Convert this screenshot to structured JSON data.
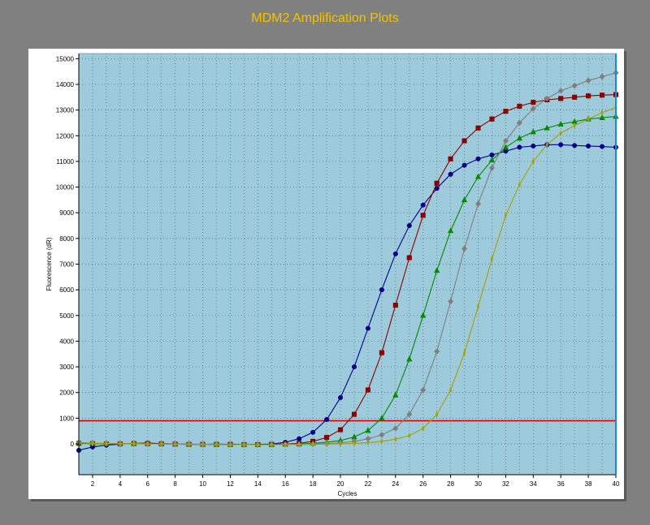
{
  "page": {
    "title": "MDM2 Amplification Plots"
  },
  "chart_data": {
    "type": "line",
    "title": "MDM2 Amplification Plots",
    "xlabel": "Cycles",
    "ylabel": "Fluorescence (dR)",
    "xlim": [
      1,
      40
    ],
    "ylim": [
      -1200,
      15200
    ],
    "x_ticks": [
      2,
      4,
      6,
      8,
      10,
      12,
      14,
      16,
      18,
      20,
      22,
      24,
      26,
      28,
      30,
      32,
      34,
      36,
      38,
      40
    ],
    "y_ticks": [
      0,
      1000,
      2000,
      3000,
      4000,
      5000,
      6000,
      7000,
      8000,
      9000,
      10000,
      11000,
      12000,
      13000,
      14000,
      15000
    ],
    "grid": true,
    "plot_background": "#9ecbdc",
    "threshold": {
      "value": 900,
      "color": "#dd0000"
    },
    "x": [
      1,
      2,
      3,
      4,
      5,
      6,
      7,
      8,
      9,
      10,
      11,
      12,
      13,
      14,
      15,
      16,
      17,
      18,
      19,
      20,
      21,
      22,
      23,
      24,
      25,
      26,
      27,
      28,
      29,
      30,
      31,
      32,
      33,
      34,
      35,
      36,
      37,
      38,
      39,
      40
    ],
    "series": [
      {
        "color": "#00008b",
        "marker": "circle",
        "values": [
          -250,
          -120,
          -50,
          -10,
          20,
          30,
          10,
          0,
          -10,
          -20,
          -10,
          -20,
          -30,
          -20,
          -10,
          60,
          200,
          450,
          950,
          1800,
          3000,
          4500,
          6000,
          7400,
          8500,
          9300,
          9950,
          10500,
          10850,
          11100,
          11250,
          11400,
          11550,
          11600,
          11650,
          11650,
          11620,
          11600,
          11580,
          11550
        ]
      },
      {
        "color": "#8b0000",
        "marker": "square",
        "values": [
          20,
          10,
          0,
          0,
          10,
          10,
          0,
          -10,
          -20,
          -20,
          -20,
          -20,
          -30,
          -30,
          -20,
          -10,
          20,
          100,
          250,
          550,
          1150,
          2100,
          3550,
          5400,
          7250,
          8900,
          10150,
          11100,
          11800,
          12300,
          12650,
          12950,
          13150,
          13300,
          13400,
          13450,
          13500,
          13550,
          13580,
          13600
        ]
      },
      {
        "color": "#008b00",
        "marker": "triangle",
        "values": [
          30,
          20,
          10,
          0,
          10,
          0,
          0,
          -10,
          -20,
          -20,
          -30,
          -30,
          -30,
          -30,
          -30,
          -20,
          -10,
          20,
          60,
          130,
          270,
          520,
          1000,
          1900,
          3300,
          5000,
          6750,
          8300,
          9500,
          10400,
          11050,
          11550,
          11900,
          12150,
          12300,
          12450,
          12550,
          12650,
          12700,
          12750
        ]
      },
      {
        "color": "#7f7f7f",
        "marker": "diamond",
        "values": [
          50,
          30,
          20,
          10,
          10,
          0,
          0,
          -10,
          -10,
          -20,
          -20,
          -30,
          -30,
          -30,
          -30,
          -20,
          -20,
          -10,
          10,
          40,
          100,
          200,
          350,
          600,
          1150,
          2100,
          3600,
          5550,
          7600,
          9350,
          10750,
          11800,
          12500,
          13050,
          13450,
          13750,
          13950,
          14150,
          14300,
          14450
        ]
      },
      {
        "color": "#a8a000",
        "marker": "star",
        "values": [
          40,
          20,
          10,
          0,
          10,
          0,
          0,
          -10,
          -20,
          -20,
          -20,
          -30,
          -30,
          -30,
          -30,
          -30,
          -20,
          -20,
          -10,
          0,
          20,
          50,
          100,
          180,
          320,
          600,
          1150,
          2100,
          3550,
          5350,
          7200,
          8900,
          10100,
          11000,
          11650,
          12100,
          12400,
          12650,
          12900,
          13100
        ]
      }
    ]
  }
}
